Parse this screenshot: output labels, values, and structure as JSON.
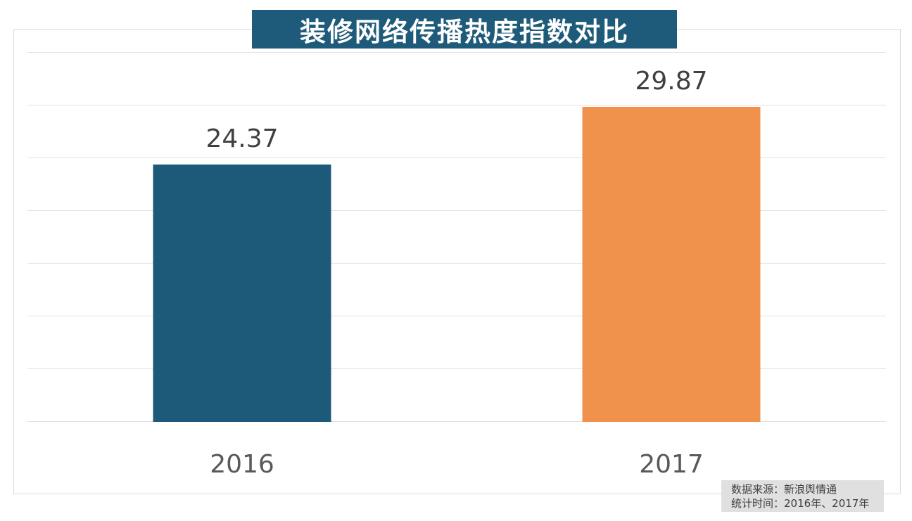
{
  "header": {
    "title": "装修网络传播热度指数对比"
  },
  "source_note": {
    "line1": "数据来源：新浪舆情通",
    "line2": "统计时间：2016年、2017年"
  },
  "colors": {
    "background": "#FFFFFF",
    "title_banner_bg": "#1E5B7A",
    "title_text": "#FFFFFF",
    "bar_2016": "#1D5A7A",
    "bar_2017": "#F0924C",
    "gridline": "#E2E2E2",
    "frame_border": "#D9D9D9",
    "value_label_text": "#404040",
    "axis_label_text": "#595959",
    "source_box_bg": "#E0E0E0",
    "source_text": "#404040"
  },
  "chart_data": {
    "type": "bar",
    "title": "装修网络传播热度指数对比",
    "categories": [
      "2016",
      "2017"
    ],
    "values": [
      24.37,
      29.87
    ],
    "value_labels": [
      "24.37",
      "29.87"
    ],
    "bar_colors": [
      "#1D5A7A",
      "#F0924C"
    ],
    "xlabel": "",
    "ylabel": "",
    "ylim": [
      0,
      35
    ],
    "grid_step": 5,
    "grid": true,
    "y_tick_labels_visible": false,
    "legend": "none",
    "annotations": [
      "数据来源：新浪舆情通",
      "统计时间：2016年、2017年"
    ]
  }
}
